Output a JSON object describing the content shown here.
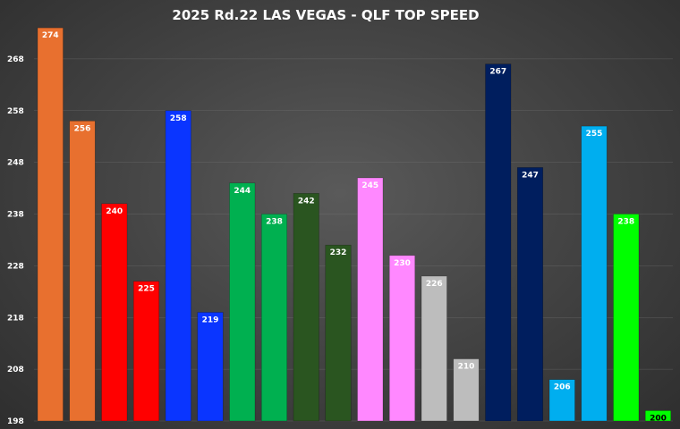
{
  "chart_data": {
    "type": "bar",
    "title": "2025 Rd.22 LAS VEGAS - QLF TOP SPEED",
    "xlabel": "",
    "ylabel": "",
    "ylim": [
      198,
      278
    ],
    "yticks": [
      198,
      208,
      218,
      228,
      238,
      248,
      258,
      268
    ],
    "grid": true,
    "legend": "none",
    "values": [
      274,
      256,
      240,
      225,
      258,
      219,
      244,
      238,
      242,
      232,
      245,
      230,
      226,
      210,
      267,
      247,
      206,
      255,
      238,
      200
    ],
    "colors": [
      "#E8702F",
      "#E8702F",
      "#FF0000",
      "#FF0000",
      "#0A35FF",
      "#0A35FF",
      "#00B050",
      "#00B050",
      "#2A5520",
      "#2A5520",
      "#FF88FF",
      "#FF88FF",
      "#BDBDBD",
      "#BDBDBD",
      "#001E5E",
      "#001E5E",
      "#00AEEF",
      "#00AEEF",
      "#00FF00",
      "#00FF00"
    ],
    "label_colors": [
      "#ffffff",
      "#ffffff",
      "#ffffff",
      "#ffffff",
      "#ffffff",
      "#ffffff",
      "#ffffff",
      "#ffffff",
      "#ffffff",
      "#ffffff",
      "#ffffff",
      "#ffffff",
      "#ffffff",
      "#ffffff",
      "#ffffff",
      "#ffffff",
      "#ffffff",
      "#ffffff",
      "#ffffff",
      "#000000"
    ]
  }
}
